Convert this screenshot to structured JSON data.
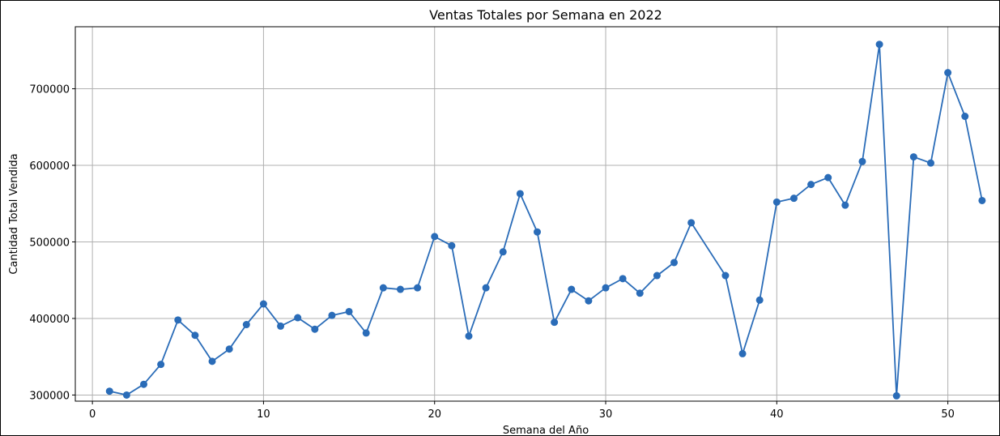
{
  "chart_data": {
    "type": "line",
    "title": "Ventas Totales por Semana en 2022",
    "xlabel": "Semana del Año",
    "ylabel": "Cantidad Total Vendida",
    "xlim": [
      -1,
      53
    ],
    "ylim": [
      292000,
      781000
    ],
    "xticks": [
      0,
      10,
      20,
      30,
      40,
      50
    ],
    "yticks": [
      300000,
      400000,
      500000,
      600000,
      700000
    ],
    "grid": true,
    "colors": {
      "line": "#2a6cb8",
      "grid": "#b0b0b0"
    },
    "series": [
      {
        "x": [
          1,
          2,
          3,
          4,
          5,
          6,
          7,
          8,
          9,
          10,
          11,
          12,
          13,
          14,
          15,
          16,
          17,
          18,
          19,
          20,
          21,
          22,
          23,
          24,
          25,
          26,
          27,
          28,
          29,
          30,
          31,
          32,
          33,
          34,
          35,
          37,
          38,
          39,
          40,
          41,
          42,
          43,
          44,
          45,
          46,
          47,
          48,
          49,
          50,
          51,
          52
        ],
        "y": [
          305000,
          300000,
          314000,
          340000,
          398000,
          378000,
          344000,
          360000,
          392000,
          419000,
          390000,
          401000,
          386000,
          404000,
          409000,
          381000,
          440000,
          438000,
          440000,
          507000,
          495000,
          377000,
          440000,
          487000,
          563000,
          513000,
          395000,
          438000,
          423000,
          440000,
          452000,
          433000,
          456000,
          473000,
          525000,
          456000,
          354000,
          424000,
          552000,
          557000,
          575000,
          584000,
          548000,
          605000,
          758000,
          299000,
          611000,
          603000,
          721000,
          664000,
          554000
        ]
      }
    ]
  }
}
